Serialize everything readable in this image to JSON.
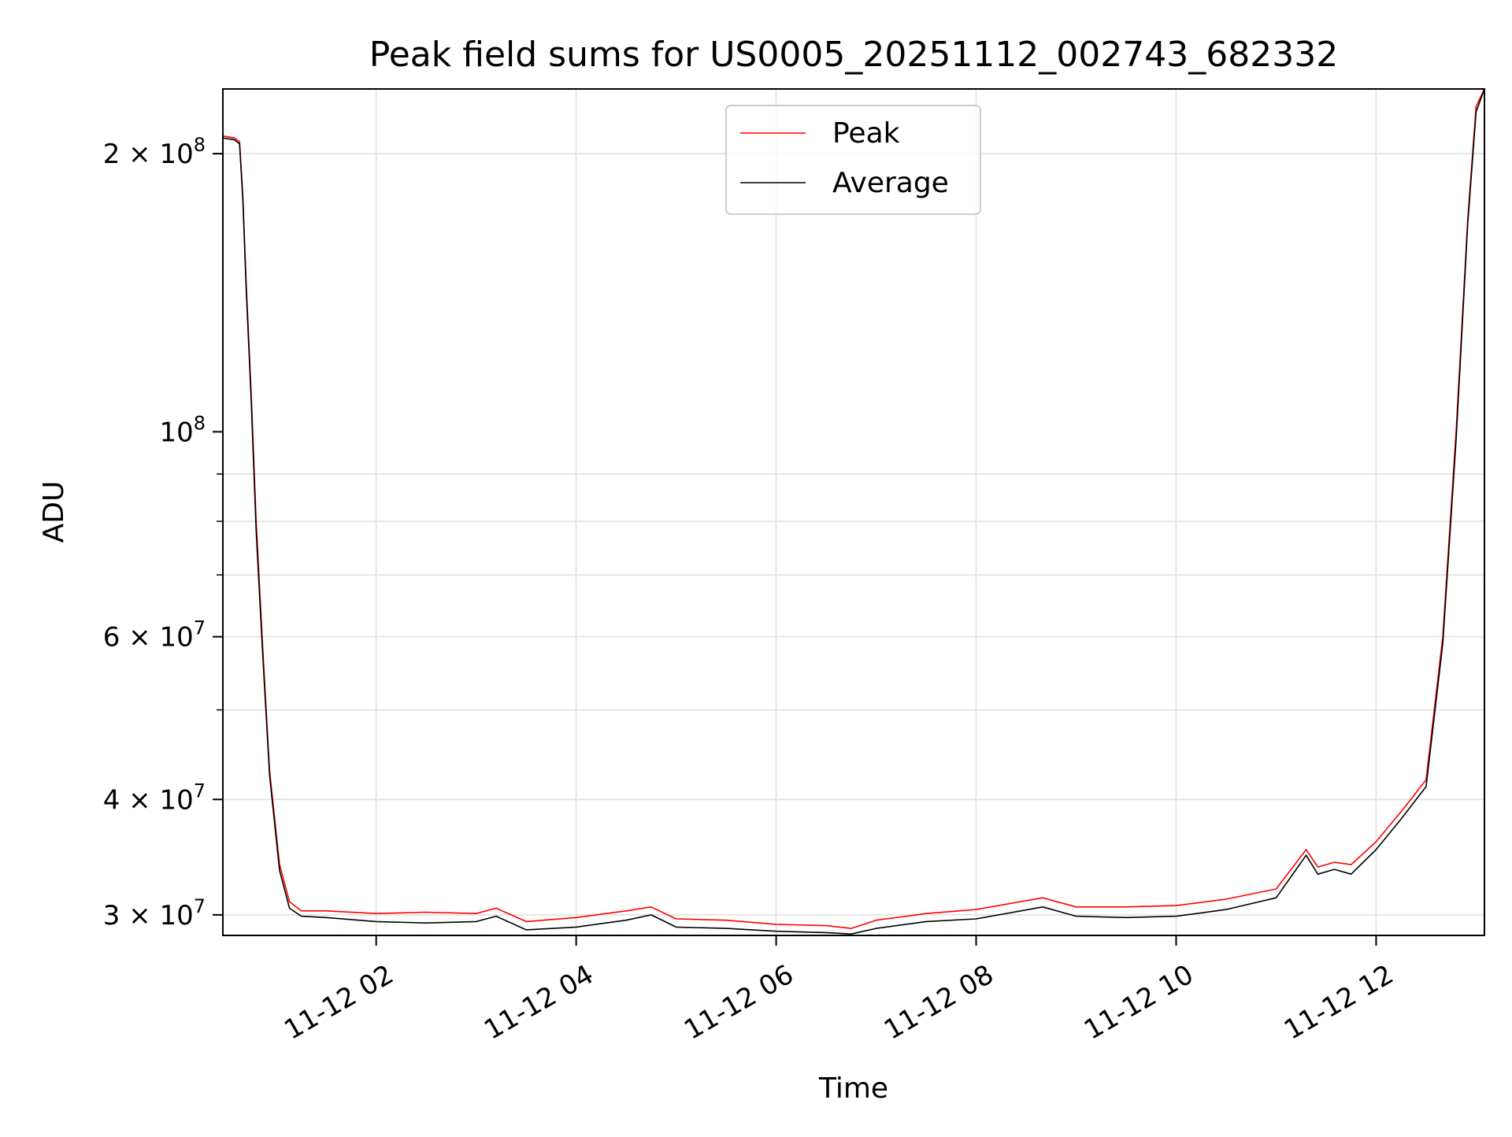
{
  "chart_data": {
    "type": "line",
    "title": "Peak field sums for US0005_20251112_002743_682332",
    "xlabel": "Time",
    "ylabel": "ADU",
    "yscale": "log",
    "ylim": [
      28500000,
      235000000
    ],
    "xlim": [
      "2025-11-12 00:28",
      "2025-11-12 13:05"
    ],
    "grid": true,
    "legend_position": "upper center",
    "x_tick_labels": [
      "11-12 02",
      "11-12 04",
      "11-12 06",
      "11-12 08",
      "11-12 10",
      "11-12 12"
    ],
    "x_ticks": [
      "2025-11-12 02:00",
      "2025-11-12 04:00",
      "2025-11-12 06:00",
      "2025-11-12 08:00",
      "2025-11-12 10:00",
      "2025-11-12 12:00"
    ],
    "y_ticks": [
      {
        "value": 200000000,
        "mantissa": "2",
        "exponent": "8"
      },
      {
        "value": 100000000,
        "mantissa": "",
        "exponent": "8"
      },
      {
        "value": 60000000,
        "mantissa": "6",
        "exponent": "7"
      },
      {
        "value": 40000000,
        "mantissa": "4",
        "exponent": "7"
      },
      {
        "value": 30000000,
        "mantissa": "3",
        "exponent": "7"
      }
    ],
    "series": [
      {
        "name": "Peak",
        "color": "#ff0000",
        "x": [
          "2025-11-12 00:28",
          "2025-11-12 00:35",
          "2025-11-12 00:38",
          "2025-11-12 00:40",
          "2025-11-12 00:42",
          "2025-11-12 00:45",
          "2025-11-12 00:48",
          "2025-11-12 00:52",
          "2025-11-12 00:56",
          "2025-11-12 01:02",
          "2025-11-12 01:08",
          "2025-11-12 01:15",
          "2025-11-12 01:30",
          "2025-11-12 02:00",
          "2025-11-12 02:30",
          "2025-11-12 03:00",
          "2025-11-12 03:12",
          "2025-11-12 03:30",
          "2025-11-12 04:00",
          "2025-11-12 04:30",
          "2025-11-12 04:45",
          "2025-11-12 05:00",
          "2025-11-12 05:30",
          "2025-11-12 06:00",
          "2025-11-12 06:30",
          "2025-11-12 06:45",
          "2025-11-12 07:00",
          "2025-11-12 07:30",
          "2025-11-12 08:00",
          "2025-11-12 08:40",
          "2025-11-12 09:00",
          "2025-11-12 09:30",
          "2025-11-12 10:00",
          "2025-11-12 10:30",
          "2025-11-12 11:00",
          "2025-11-12 11:18",
          "2025-11-12 11:25",
          "2025-11-12 11:35",
          "2025-11-12 11:45",
          "2025-11-12 12:00",
          "2025-11-12 12:15",
          "2025-11-12 12:30",
          "2025-11-12 12:40",
          "2025-11-12 12:48",
          "2025-11-12 12:55",
          "2025-11-12 13:00",
          "2025-11-12 13:05"
        ],
        "values": [
          209000000,
          208000000,
          206000000,
          180000000,
          145000000,
          110000000,
          80000000,
          58000000,
          43000000,
          34000000,
          31000000,
          30300000,
          30300000,
          30100000,
          30200000,
          30100000,
          30500000,
          29500000,
          29800000,
          30300000,
          30600000,
          29700000,
          29600000,
          29300000,
          29200000,
          29000000,
          29600000,
          30100000,
          30400000,
          31300000,
          30600000,
          30600000,
          30700000,
          31200000,
          32000000,
          35300000,
          33800000,
          34200000,
          34000000,
          36000000,
          38800000,
          42000000,
          60000000,
          100000000,
          170000000,
          225000000,
          240000000
        ]
      },
      {
        "name": "Average",
        "color": "#000000",
        "x": [
          "2025-11-12 00:28",
          "2025-11-12 00:35",
          "2025-11-12 00:38",
          "2025-11-12 00:40",
          "2025-11-12 00:42",
          "2025-11-12 00:45",
          "2025-11-12 00:48",
          "2025-11-12 00:52",
          "2025-11-12 00:56",
          "2025-11-12 01:02",
          "2025-11-12 01:08",
          "2025-11-12 01:15",
          "2025-11-12 01:30",
          "2025-11-12 02:00",
          "2025-11-12 02:30",
          "2025-11-12 03:00",
          "2025-11-12 03:12",
          "2025-11-12 03:30",
          "2025-11-12 04:00",
          "2025-11-12 04:30",
          "2025-11-12 04:45",
          "2025-11-12 05:00",
          "2025-11-12 05:30",
          "2025-11-12 06:00",
          "2025-11-12 06:30",
          "2025-11-12 06:45",
          "2025-11-12 07:00",
          "2025-11-12 07:30",
          "2025-11-12 08:00",
          "2025-11-12 08:40",
          "2025-11-12 09:00",
          "2025-11-12 09:30",
          "2025-11-12 10:00",
          "2025-11-12 10:30",
          "2025-11-12 11:00",
          "2025-11-12 11:18",
          "2025-11-12 11:25",
          "2025-11-12 11:35",
          "2025-11-12 11:45",
          "2025-11-12 12:00",
          "2025-11-12 12:15",
          "2025-11-12 12:30",
          "2025-11-12 12:40",
          "2025-11-12 12:48",
          "2025-11-12 12:55",
          "2025-11-12 13:00",
          "2025-11-12 13:05"
        ],
        "values": [
          208000000,
          207000000,
          205000000,
          178000000,
          143000000,
          108000000,
          78000000,
          57000000,
          42500000,
          33500000,
          30500000,
          29900000,
          29800000,
          29500000,
          29400000,
          29500000,
          29900000,
          28900000,
          29100000,
          29600000,
          30000000,
          29100000,
          29000000,
          28800000,
          28700000,
          28600000,
          29000000,
          29500000,
          29700000,
          30600000,
          29900000,
          29800000,
          29900000,
          30400000,
          31300000,
          34800000,
          33200000,
          33600000,
          33200000,
          35300000,
          38100000,
          41300000,
          59000000,
          98000000,
          168000000,
          222000000,
          238000000
        ]
      }
    ]
  }
}
